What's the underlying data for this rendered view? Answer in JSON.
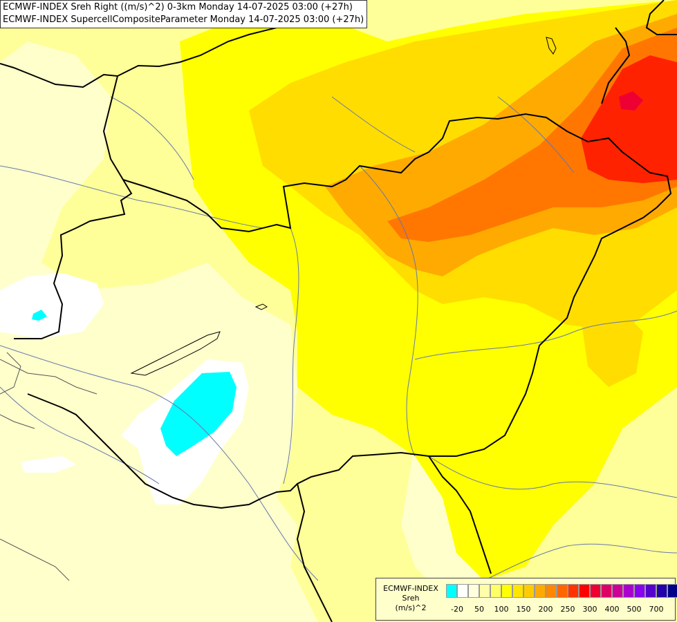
{
  "titles": {
    "line1": "ECMWF-INDEX Sreh Right ((m/s)^2) 0-3km Monday 14-07-2025 03:00 (+27h)",
    "line2": "ECMWF-INDEX SupercellCompositeParameter Monday 14-07-2025 03:00 (+27h)"
  },
  "legend": {
    "title_line1": "ECMWF-INDEX",
    "title_line2": "Sreh",
    "title_line3": "(m/s)^2",
    "colors": [
      "#00ffff",
      "#ffffff",
      "#ffffdd",
      "#ffffaa",
      "#ffff66",
      "#ffff00",
      "#ffe600",
      "#ffcc00",
      "#ffaa00",
      "#ff8800",
      "#ff6600",
      "#ff3300",
      "#ff0000",
      "#ee0033",
      "#dd0066",
      "#cc0099",
      "#aa00cc",
      "#8800ee",
      "#5500cc",
      "#2200aa",
      "#000088"
    ],
    "ticks": [
      "-20",
      "50",
      "100",
      "150",
      "200",
      "250",
      "300",
      "400",
      "500",
      "700"
    ]
  },
  "map_colors": {
    "pale": "#ffffcc",
    "light": "#ffff99",
    "yellow": "#ffff00",
    "gold": "#ffdd00",
    "orange": "#ffaa00",
    "deep_orange": "#ff7700",
    "red": "#ff2200",
    "cyan": "#00ffff",
    "white": "#ffffff",
    "border": "#000000",
    "river": "#6677aa"
  }
}
